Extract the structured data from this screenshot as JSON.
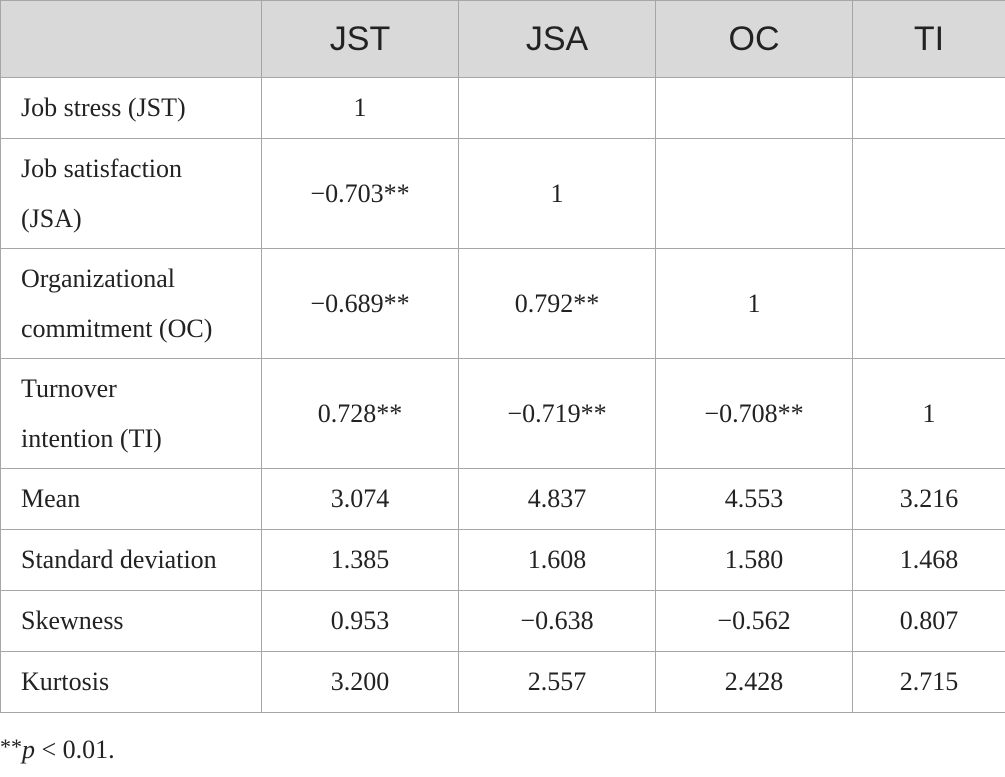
{
  "table": {
    "header": [
      "JST",
      "JSA",
      "OC",
      "TI"
    ],
    "rows": [
      {
        "label": [
          "Job stress (JST)"
        ],
        "cells": [
          "1"
        ]
      },
      {
        "label": [
          "Job satisfaction",
          "(JSA)"
        ],
        "cells": [
          "−0.703**",
          "1"
        ]
      },
      {
        "label": [
          "Organizational",
          "commitment (OC)"
        ],
        "cells": [
          "−0.689**",
          "0.792**",
          "1"
        ]
      },
      {
        "label": [
          "Turnover",
          "intention (TI)"
        ],
        "cells": [
          "0.728**",
          "−0.719**",
          "−0.708**",
          "1"
        ]
      },
      {
        "label": [
          "Mean"
        ],
        "cells": [
          "3.074",
          "4.837",
          "4.553",
          "3.216"
        ]
      },
      {
        "label": [
          "Standard deviation"
        ],
        "cells": [
          "1.385",
          "1.608",
          "1.580",
          "1.468"
        ]
      },
      {
        "label": [
          "Skewness"
        ],
        "cells": [
          "0.953",
          "−0.638",
          "−0.562",
          "0.807"
        ]
      },
      {
        "label": [
          "Kurtosis"
        ],
        "cells": [
          "3.200",
          "2.557",
          "2.428",
          "2.715"
        ]
      }
    ]
  },
  "footnote": {
    "marker": "**",
    "variable": "p",
    "condition": "< 0.01."
  }
}
